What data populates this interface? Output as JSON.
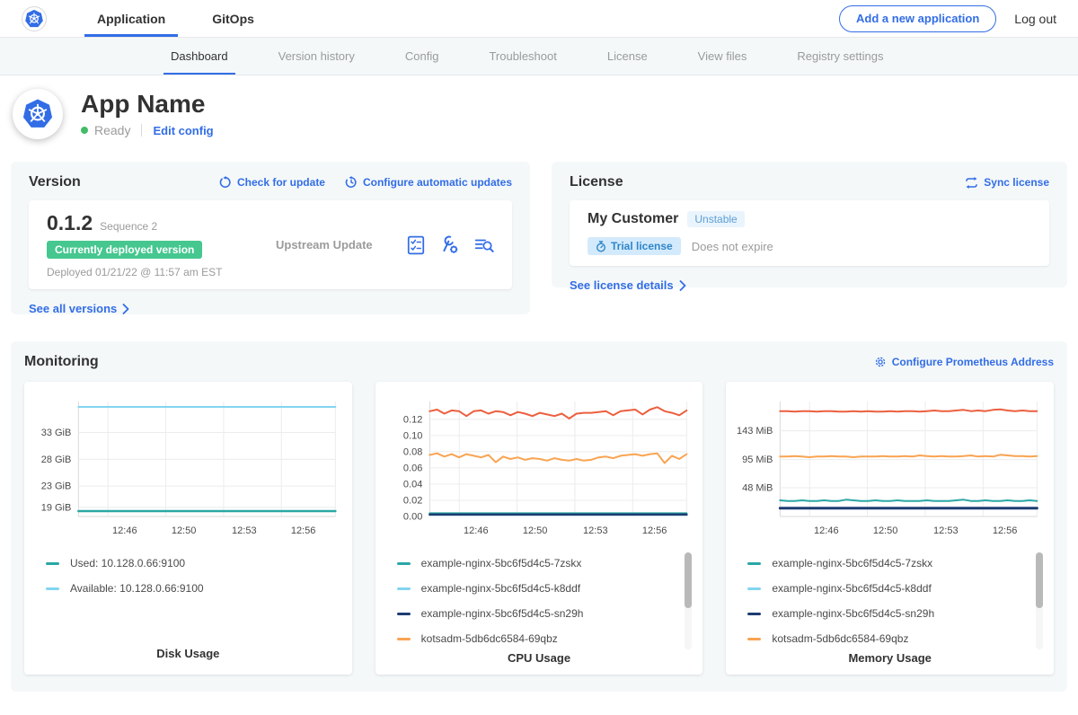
{
  "topnav": {
    "tabs": [
      {
        "label": "Application",
        "active": true
      },
      {
        "label": "GitOps",
        "active": false
      }
    ],
    "add_app_button": "Add a new application",
    "logout": "Log out"
  },
  "subnav": {
    "tabs": [
      "Dashboard",
      "Version history",
      "Config",
      "Troubleshoot",
      "License",
      "View files",
      "Registry settings"
    ],
    "active": "Dashboard"
  },
  "app": {
    "name": "App Name",
    "status": "Ready",
    "edit_config": "Edit config"
  },
  "version": {
    "title": "Version",
    "check_for_update": "Check for update",
    "configure_updates": "Configure automatic updates",
    "current_version": "0.1.2",
    "sequence": "Sequence 2",
    "deployed_badge": "Currently deployed version",
    "deployed_at": "Deployed 01/21/22 @ 11:57 am EST",
    "source": "Upstream Update",
    "see_all": "See all versions"
  },
  "license": {
    "title": "License",
    "sync": "Sync license",
    "customer": "My Customer",
    "channel": "Unstable",
    "type_badge": "Trial license",
    "expiry": "Does not expire",
    "details": "See license details"
  },
  "monitoring": {
    "title": "Monitoring",
    "configure": "Configure Prometheus Address"
  },
  "colors": {
    "accent_blue": "#326de6",
    "badge_green": "#45c78f",
    "status_green": "#44bb66",
    "teal": "#2aa7a5",
    "light_blue": "#82d5f0",
    "navy": "#1e3c73",
    "orange": "#f9a452",
    "vermilion": "#ec5f3f"
  },
  "chart_data": [
    {
      "type": "line",
      "title": "Disk Usage",
      "x_ticks": [
        "12:46",
        "12:50",
        "12:53",
        "12:56"
      ],
      "y_ticks": [
        {
          "label": "19 GiB",
          "value": 19
        },
        {
          "label": "23 GiB",
          "value": 23
        },
        {
          "label": "28 GiB",
          "value": 28
        },
        {
          "label": "33 GiB",
          "value": 33
        }
      ],
      "y_range": [
        17.3,
        38.8
      ],
      "scrollbar": false,
      "legend": [
        {
          "label": "Used: 10.128.0.66:9100",
          "color": "#2aa7a5"
        },
        {
          "label": "Available: 10.128.0.66:9100",
          "color": "#82d5f0"
        }
      ],
      "series": [
        {
          "name": "Available: 10.128.0.66:9100",
          "color": "#82d5f0",
          "width": 2,
          "values": [
            37.8,
            37.8
          ]
        },
        {
          "name": "Used: 10.128.0.66:9100",
          "color": "#2aa7a5",
          "width": 2.5,
          "values": [
            18.3,
            18.3
          ]
        }
      ]
    },
    {
      "type": "line",
      "title": "CPU Usage",
      "x_ticks": [
        "12:46",
        "12:50",
        "12:53",
        "12:56"
      ],
      "y_ticks": [
        {
          "label": "0.00",
          "value": 0
        },
        {
          "label": "0.02",
          "value": 0.02
        },
        {
          "label": "0.04",
          "value": 0.04
        },
        {
          "label": "0.06",
          "value": 0.06
        },
        {
          "label": "0.08",
          "value": 0.08
        },
        {
          "label": "0.10",
          "value": 0.1
        },
        {
          "label": "0.12",
          "value": 0.12
        }
      ],
      "y_range": [
        0,
        0.142
      ],
      "scrollbar": true,
      "legend": [
        {
          "label": "example-nginx-5bc6f5d4c5-7zskx",
          "color": "#2aa7a5"
        },
        {
          "label": "example-nginx-5bc6f5d4c5-k8ddf",
          "color": "#82d5f0"
        },
        {
          "label": "example-nginx-5bc6f5d4c5-sn29h",
          "color": "#1e3c73"
        },
        {
          "label": "kotsadm-5db6dc6584-69qbz",
          "color": "#f9a452"
        }
      ],
      "series": [
        {
          "name": "",
          "color": "#ec5f3f",
          "width": 2,
          "values": [
            0.13,
            0.132,
            0.127,
            0.131,
            0.13,
            0.124,
            0.13,
            0.131,
            0.127,
            0.13,
            0.129,
            0.125,
            0.129,
            0.127,
            0.124,
            0.128,
            0.126,
            0.124,
            0.127,
            0.121,
            0.127,
            0.128,
            0.128,
            0.129,
            0.13,
            0.125,
            0.13,
            0.131,
            0.132,
            0.126,
            0.132,
            0.135,
            0.13,
            0.128,
            0.125,
            0.131
          ]
        },
        {
          "name": "kotsadm-5db6dc6584-69qbz",
          "color": "#f9a452",
          "width": 2,
          "values": [
            0.076,
            0.078,
            0.074,
            0.077,
            0.073,
            0.077,
            0.075,
            0.073,
            0.076,
            0.067,
            0.074,
            0.071,
            0.073,
            0.07,
            0.072,
            0.071,
            0.069,
            0.072,
            0.07,
            0.069,
            0.071,
            0.069,
            0.07,
            0.073,
            0.074,
            0.072,
            0.075,
            0.076,
            0.077,
            0.075,
            0.077,
            0.078,
            0.066,
            0.075,
            0.071,
            0.077
          ]
        },
        {
          "name": "example-nginx-5bc6f5d4c5-k8ddf",
          "color": "#82d5f0",
          "width": 2,
          "values": [
            0.002,
            0.002
          ]
        },
        {
          "name": "example-nginx-5bc6f5d4c5-7zskx",
          "color": "#2aa7a5",
          "width": 2,
          "values": [
            0.004,
            0.004
          ]
        },
        {
          "name": "example-nginx-5bc6f5d4c5-sn29h",
          "color": "#1e3c73",
          "width": 2.5,
          "values": [
            0.0025,
            0.0025
          ]
        }
      ]
    },
    {
      "type": "line",
      "title": "Memory Usage",
      "x_ticks": [
        "12:46",
        "12:50",
        "12:53",
        "12:56"
      ],
      "y_ticks": [
        {
          "label": "48 MiB",
          "value": 48
        },
        {
          "label": "95 MiB",
          "value": 95
        },
        {
          "label": "143 MiB",
          "value": 143
        }
      ],
      "y_range": [
        0,
        192
      ],
      "scrollbar": true,
      "legend": [
        {
          "label": "example-nginx-5bc6f5d4c5-7zskx",
          "color": "#2aa7a5"
        },
        {
          "label": "example-nginx-5bc6f5d4c5-k8ddf",
          "color": "#82d5f0"
        },
        {
          "label": "example-nginx-5bc6f5d4c5-sn29h",
          "color": "#1e3c73"
        },
        {
          "label": "kotsadm-5db6dc6584-69qbz",
          "color": "#f9a452"
        }
      ],
      "series": [
        {
          "name": "",
          "color": "#ec5f3f",
          "width": 2,
          "values": [
            176,
            176,
            175,
            176,
            176,
            175,
            176,
            176,
            175,
            175,
            176,
            175,
            176,
            175,
            175,
            176,
            175,
            176,
            176,
            175,
            176,
            177,
            176,
            176,
            177,
            178,
            176,
            177,
            176,
            178,
            179,
            177,
            176,
            177,
            176,
            176
          ]
        },
        {
          "name": "kotsadm-5db6dc6584-69qbz",
          "color": "#f9a452",
          "width": 2,
          "values": [
            100,
            100,
            101,
            100,
            99,
            100,
            100,
            101,
            100,
            100,
            99,
            100,
            100,
            100,
            101,
            100,
            100,
            101,
            100,
            102,
            101,
            100,
            101,
            100,
            100,
            101,
            102,
            100,
            101,
            100,
            103,
            102,
            101,
            101,
            100,
            101
          ]
        },
        {
          "name": "example-nginx-5bc6f5d4c5-7zskx",
          "color": "#2aa7a5",
          "width": 2,
          "values": [
            27,
            26,
            26,
            27,
            26,
            26,
            27,
            26,
            26,
            28,
            27,
            26,
            26,
            27,
            26,
            26,
            27,
            26,
            26,
            26,
            27,
            26,
            26,
            26,
            27,
            28,
            26,
            26,
            27,
            26,
            26,
            27,
            26,
            26,
            27,
            26
          ]
        },
        {
          "name": "example-nginx-5bc6f5d4c5-sn29h",
          "color": "#1e3c73",
          "width": 3,
          "values": [
            14,
            14
          ]
        }
      ]
    }
  ]
}
